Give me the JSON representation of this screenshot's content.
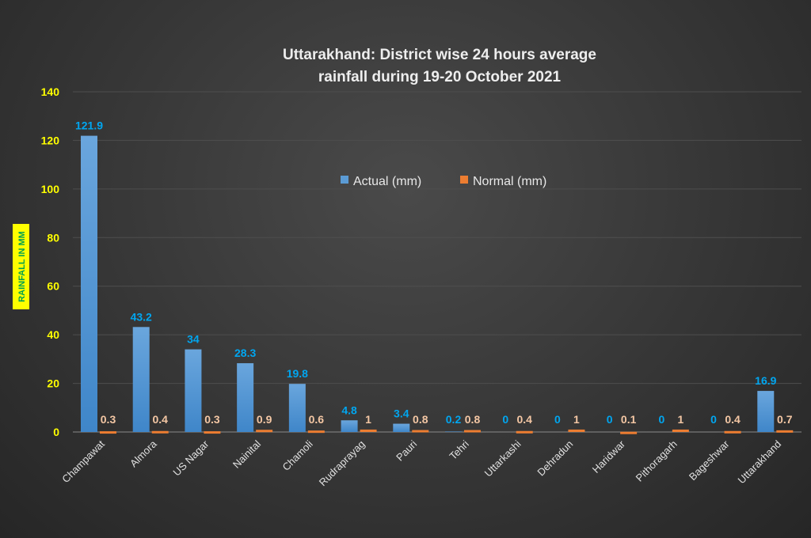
{
  "chart_data": {
    "type": "bar",
    "title": [
      "Uttarakhand:  District wise 24 hours average",
      "rainfall during 19-20 October 2021"
    ],
    "xlabel": "",
    "ylabel": "RAINFALL IN MM",
    "ylim": [
      0,
      140
    ],
    "yticks": [
      0,
      20,
      40,
      60,
      80,
      100,
      120,
      140
    ],
    "grid": true,
    "legend_position": "center-top",
    "categories": [
      "Champawat",
      "Almora",
      "US Nagar",
      "Nainital",
      "Chamoli",
      "Rudraprayag",
      "Pauri",
      "Tehri",
      "Uttarkashi",
      "Dehradun",
      "Haridwar",
      "Pithoragarh",
      "Bageshwar",
      "Uttarakhand"
    ],
    "series": [
      {
        "name": "Actual (mm)",
        "color": "#5b9bd5",
        "label_color": "#00a6f0",
        "values": [
          121.9,
          43.2,
          34,
          28.3,
          19.8,
          4.8,
          3.4,
          0.2,
          0,
          0,
          0,
          0,
          0,
          16.9
        ]
      },
      {
        "name": "Normal (mm)",
        "color": "#ed7d31",
        "label_color": "#f4c7a4",
        "values": [
          0.3,
          0.4,
          0.3,
          0.9,
          0.6,
          1,
          0.8,
          0.8,
          0.4,
          1,
          0.1,
          1,
          0.4,
          0.7
        ]
      }
    ],
    "tick_color": "#ffff00"
  }
}
